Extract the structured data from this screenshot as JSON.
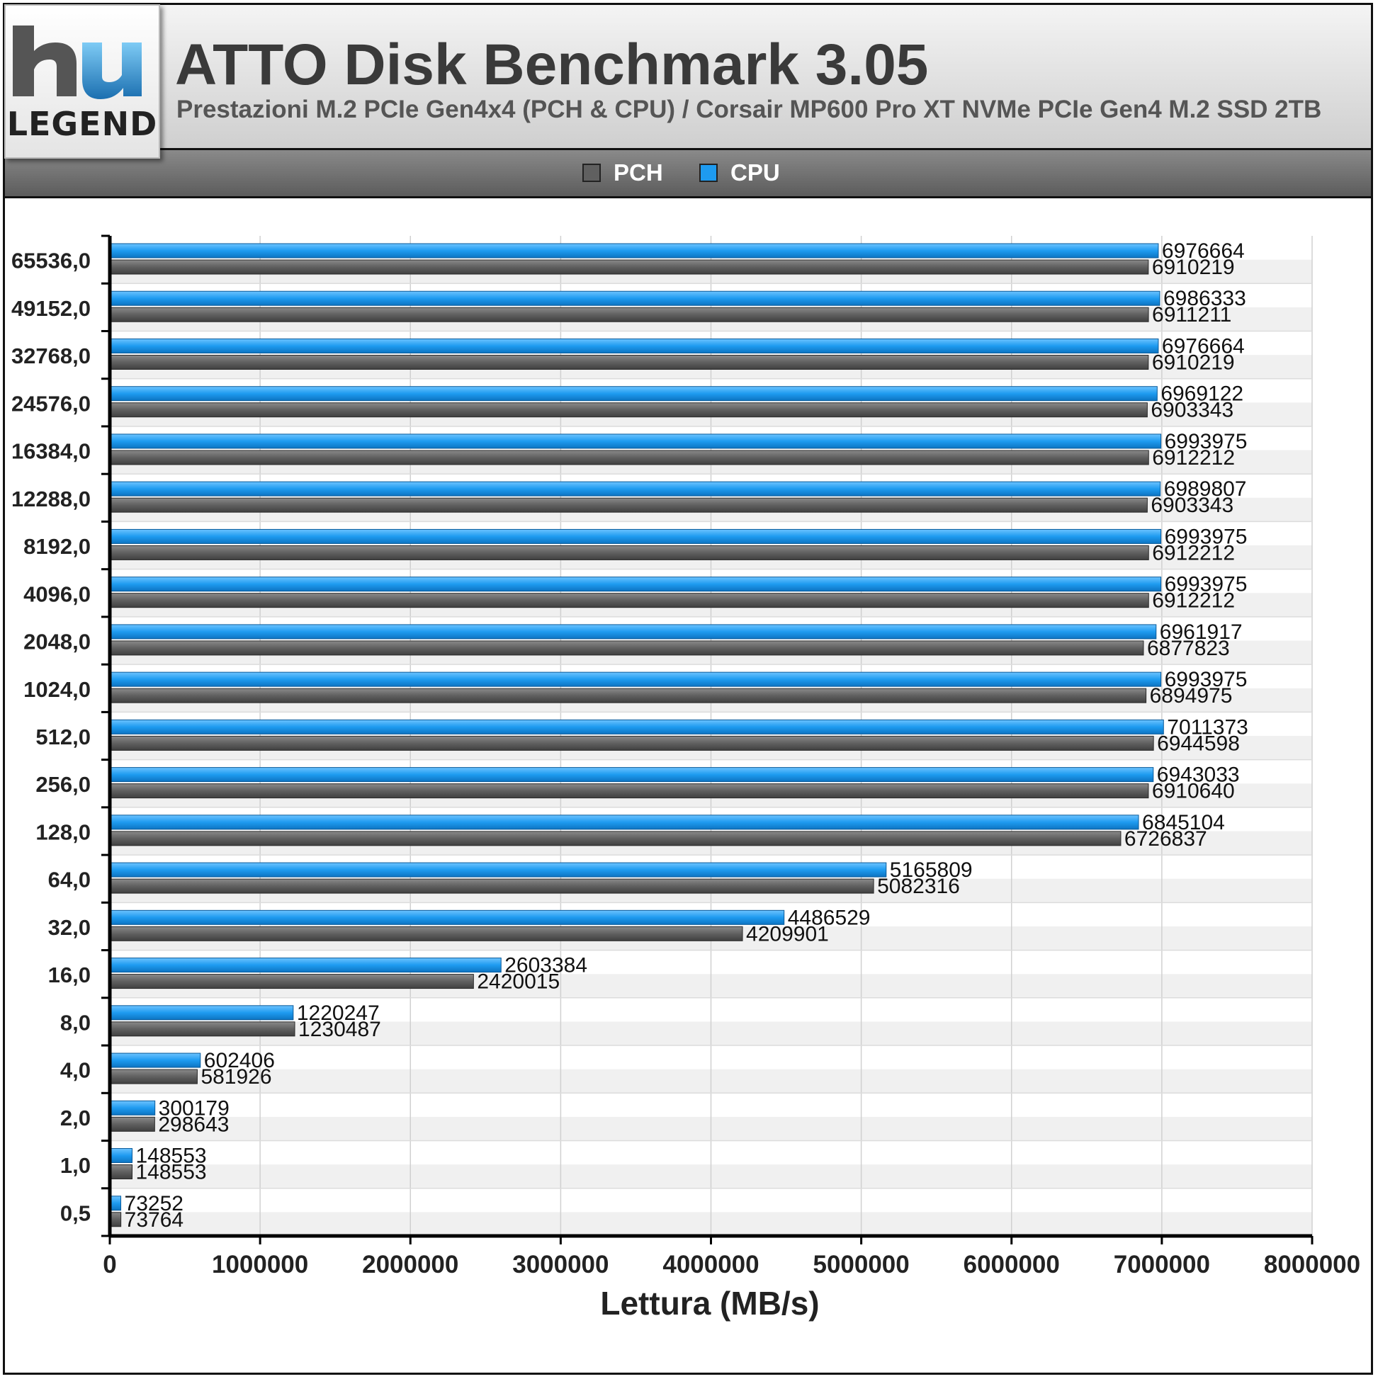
{
  "header": {
    "logo_text": "LEGEND",
    "title": "ATTO Disk Benchmark 3.05",
    "subtitle": "Prestazioni M.2 PCIe Gen4x4 (PCH & CPU) / Corsair MP600 Pro XT NVMe PCIe Gen4 M.2 SSD 2TB"
  },
  "legend": [
    {
      "name": "PCH",
      "color": "#606060"
    },
    {
      "name": "CPU",
      "color": "#1e9bf0"
    }
  ],
  "chart_data": {
    "type": "bar",
    "orientation": "horizontal",
    "title": "ATTO Disk Benchmark 3.05",
    "subtitle": "Prestazioni M.2 PCIe Gen4x4 (PCH & CPU) / Corsair MP600 Pro XT NVMe PCIe Gen4 M.2 SSD 2TB",
    "xlabel": "Lettura (MB/s)",
    "ylabel": "",
    "xlim": [
      0,
      8000000
    ],
    "xticks": [
      0,
      1000000,
      2000000,
      3000000,
      4000000,
      5000000,
      6000000,
      7000000,
      8000000
    ],
    "xtick_labels": [
      "0",
      "1000000",
      "2000000",
      "3000000",
      "4000000",
      "5000000",
      "6000000",
      "7000000",
      "8000000"
    ],
    "grid": true,
    "legend_position": "top-center",
    "categories": [
      "65536,0",
      "49152,0",
      "32768,0",
      "24576,0",
      "16384,0",
      "12288,0",
      "8192,0",
      "4096,0",
      "2048,0",
      "1024,0",
      "512,0",
      "256,0",
      "128,0",
      "64,0",
      "32,0",
      "16,0",
      "8,0",
      "4,0",
      "2,0",
      "1,0",
      "0,5"
    ],
    "series": [
      {
        "name": "CPU",
        "color": "#1e9bf0",
        "values": [
          6976664,
          6986333,
          6976664,
          6969122,
          6993975,
          6989807,
          6993975,
          6993975,
          6961917,
          6993975,
          7011373,
          6943033,
          6845104,
          5165809,
          4486529,
          2603384,
          1220247,
          602406,
          300179,
          148553,
          73252
        ]
      },
      {
        "name": "PCH",
        "color": "#606060",
        "values": [
          6910219,
          6911211,
          6910219,
          6903343,
          6912212,
          6903343,
          6912212,
          6912212,
          6877823,
          6894975,
          6944598,
          6910640,
          6726837,
          5082316,
          4209901,
          2420015,
          1230487,
          581926,
          298643,
          148553,
          73764
        ]
      }
    ]
  }
}
